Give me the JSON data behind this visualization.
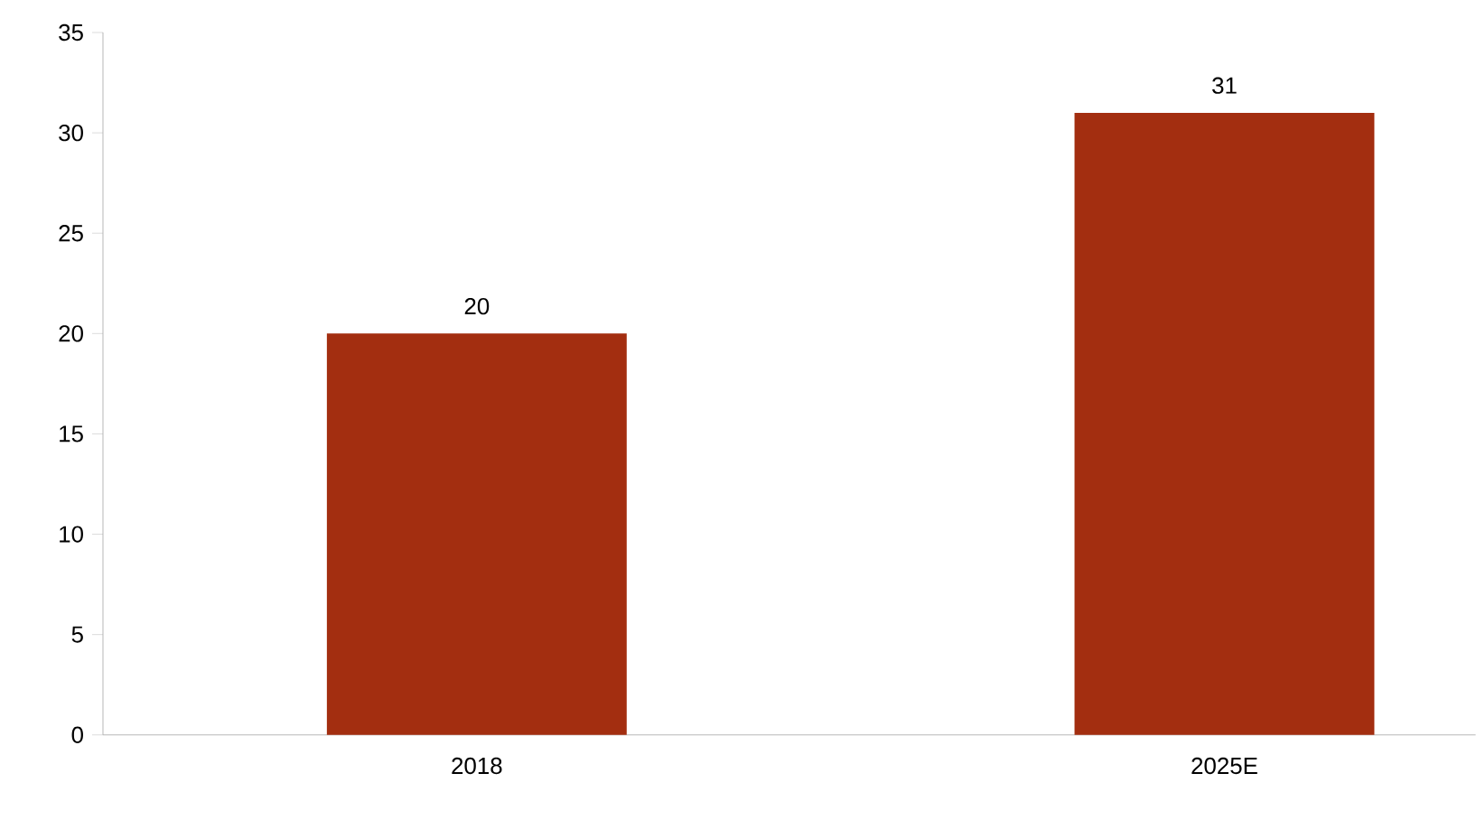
{
  "chart_data": {
    "type": "bar",
    "categories": [
      "2018",
      "2025E"
    ],
    "values": [
      20,
      31
    ],
    "color": "#a32e10",
    "ylim": [
      0,
      35
    ],
    "yticks": [
      0,
      5,
      10,
      15,
      20,
      25,
      30,
      35
    ],
    "data_labels": true
  }
}
